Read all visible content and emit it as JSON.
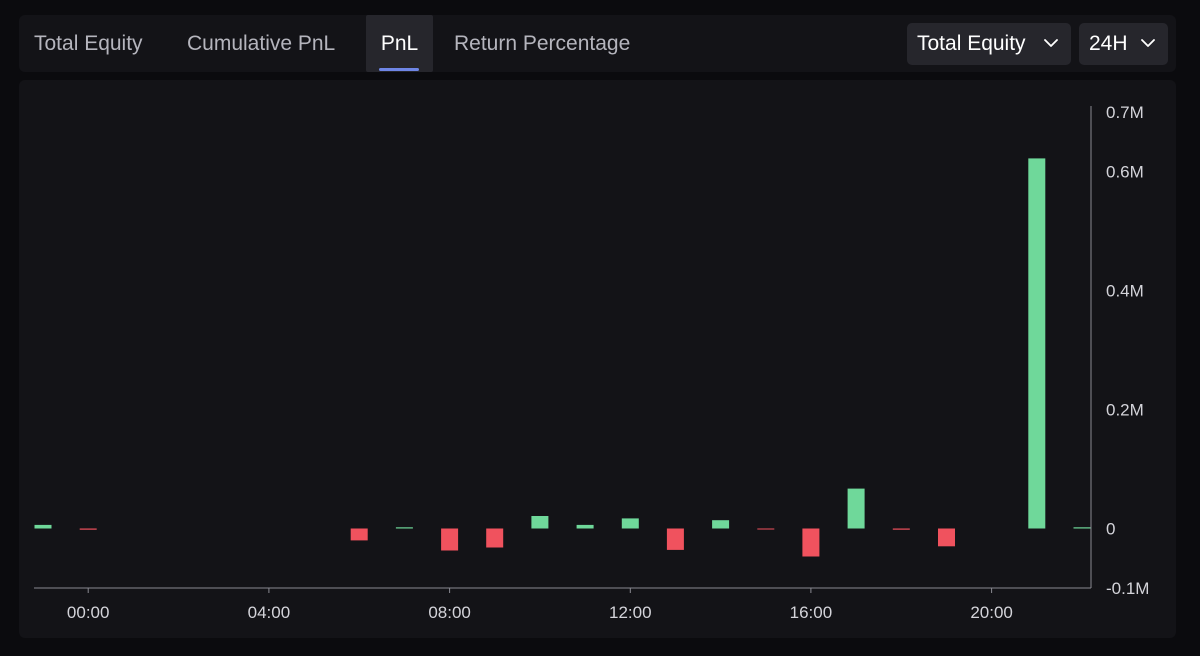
{
  "tabs": [
    {
      "label": "Total Equity",
      "active": false
    },
    {
      "label": "Cumulative PnL",
      "active": false
    },
    {
      "label": "PnL",
      "active": true
    },
    {
      "label": "Return Percentage",
      "active": false
    }
  ],
  "dropdowns": {
    "metric": {
      "selected": "Total Equity",
      "icon": "chevron-down-icon"
    },
    "range": {
      "selected": "24H",
      "icon": "chevron-down-icon"
    }
  },
  "colors": {
    "positive": "#6fd89a",
    "negative": "#f0525e",
    "accent": "#6f86e6"
  },
  "chart_data": {
    "type": "bar",
    "title": "",
    "xlabel": "",
    "ylabel": "",
    "grid": false,
    "y_axis_position": "right",
    "ylim": [
      -0.1,
      0.7
    ],
    "y_unit": "M",
    "y_ticks": [
      {
        "label": "0.7M",
        "value": 0.7
      },
      {
        "label": "0.6M",
        "value": 0.6
      },
      {
        "label": "0.4M",
        "value": 0.4
      },
      {
        "label": "0.2M",
        "value": 0.2
      },
      {
        "label": "0",
        "value": 0
      },
      {
        "label": "-0.1M",
        "value": -0.1
      }
    ],
    "x_range_hours": [
      -1.2,
      22.2
    ],
    "x_ticks": [
      {
        "label": "00:00",
        "hour": 0
      },
      {
        "label": "04:00",
        "hour": 4
      },
      {
        "label": "08:00",
        "hour": 8
      },
      {
        "label": "12:00",
        "hour": 12
      },
      {
        "label": "16:00",
        "hour": 16
      },
      {
        "label": "20:00",
        "hour": 20
      }
    ],
    "hours": [
      -1,
      0,
      1,
      2,
      3,
      4,
      5,
      6,
      7,
      8,
      9,
      10,
      11,
      12,
      13,
      14,
      15,
      16,
      17,
      18,
      19,
      20,
      21,
      22
    ],
    "values": [
      0.006,
      -0.002,
      0,
      0,
      0,
      0,
      0,
      -0.02,
      0.002,
      -0.037,
      -0.032,
      0.021,
      0.006,
      0.017,
      -0.036,
      0.014,
      -0.001,
      -0.047,
      0.067,
      -0.002,
      -0.03,
      0,
      0.622,
      0.002
    ]
  }
}
